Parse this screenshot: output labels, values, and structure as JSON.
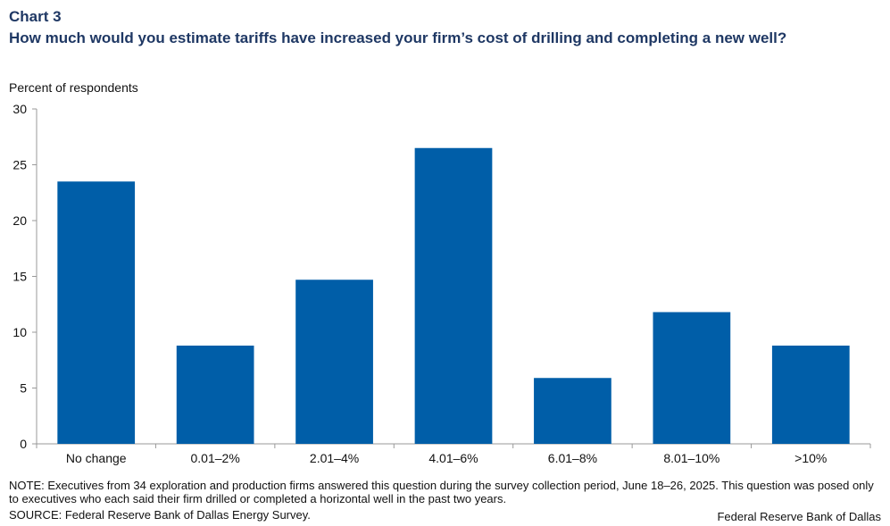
{
  "header": {
    "chart_label": "Chart 3",
    "title": "How much would you estimate tariffs have increased your firm’s cost of drilling and completing a new well?"
  },
  "footer": {
    "note": "NOTE: Executives from 34 exploration and production firms answered this question during the survey collection period, June 18–26, 2025. This question was posed only to executives who each said their firm drilled or completed a horizontal well in the past two years.",
    "source": "SOURCE: Federal Reserve Bank of Dallas Energy Survey.",
    "credit": "Federal Reserve Bank of Dallas"
  },
  "colors": {
    "bar": "#005ea8",
    "axis": "#999999",
    "title": "#1f3864"
  },
  "chart_data": {
    "type": "bar",
    "title": "How much would you estimate tariffs have increased your firm’s cost of drilling and completing a new well?",
    "xlabel": "",
    "ylabel": "Percent of respondents",
    "categories": [
      "No change",
      "0.01–2%",
      "2.01–4%",
      "4.01–6%",
      "6.01–8%",
      "8.01–10%",
      ">10%"
    ],
    "values": [
      23.5,
      8.8,
      14.7,
      26.5,
      5.9,
      11.8,
      8.8
    ],
    "ylim": [
      0,
      30
    ],
    "yticks": [
      0,
      5,
      10,
      15,
      20,
      25,
      30
    ],
    "grid": false,
    "legend": "none"
  }
}
